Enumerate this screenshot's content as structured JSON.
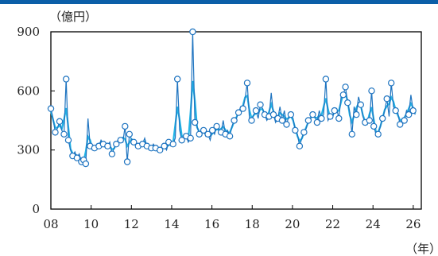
{
  "colors": {
    "accent_bar": "#0b5fa8",
    "series_marker": "#1f74c0",
    "series_smooth": "#22b4e6"
  },
  "chart_data": {
    "type": "line",
    "ylabel": "（億円）",
    "xlabel": "（年）",
    "ylim": [
      0,
      900
    ],
    "yticks": [
      0,
      300,
      600,
      900
    ],
    "xlim": [
      2008,
      2026.4
    ],
    "xticks": [
      2008,
      2010,
      2012,
      2014,
      2016,
      2018,
      2020,
      2022,
      2024,
      2026
    ],
    "xtick_labels": [
      "08",
      "10",
      "12",
      "14",
      "16",
      "18",
      "20",
      "22",
      "24",
      "26"
    ],
    "grid": false,
    "series": [
      {
        "marker": "circle",
        "values": [
          510,
          460,
          390,
          410,
          445,
          400,
          380,
          660,
          350,
          300,
          270,
          290,
          260,
          280,
          240,
          250,
          230,
          460,
          320,
          300,
          310,
          330,
          320,
          350,
          330,
          310,
          320,
          340,
          280,
          310,
          330,
          360,
          350,
          340,
          420,
          240,
          380,
          350,
          340,
          330,
          320,
          310,
          330,
          360,
          320,
          300,
          310,
          330,
          310,
          290,
          300,
          310,
          320,
          300,
          340,
          320,
          330,
          360,
          660,
          400,
          350,
          380,
          370,
          340,
          360,
          900,
          440,
          420,
          380,
          390,
          400,
          370,
          380,
          350,
          400,
          380,
          420,
          400,
          390,
          450,
          380,
          400,
          370,
          420,
          450,
          460,
          490,
          520,
          510,
          560,
          640,
          460,
          450,
          480,
          500,
          460,
          530,
          510,
          480,
          450,
          470,
          590,
          480,
          440,
          460,
          520,
          450,
          500,
          430,
          470,
          480,
          460,
          400,
          380,
          320,
          360,
          390,
          410,
          450,
          460,
          480,
          470,
          440,
          500,
          460,
          480,
          660,
          450,
          470,
          460,
          500,
          510,
          460,
          570,
          580,
          620,
          540,
          490,
          380,
          520,
          480,
          570,
          530,
          470,
          440,
          430,
          450,
          600,
          420,
          380,
          380,
          420,
          460,
          500,
          560,
          470,
          640,
          520,
          500,
          490,
          430,
          460,
          450,
          500,
          480,
          580,
          500,
          480
        ]
      }
    ]
  }
}
